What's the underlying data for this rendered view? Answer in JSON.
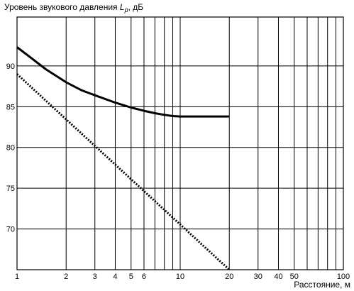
{
  "chart_data": {
    "type": "line",
    "ylabel_prefix": "Уровень звукового давления ",
    "ylabel_symbol": "L",
    "ylabel_subscript": "p",
    "ylabel_suffix": ", дБ",
    "xlabel": "Расстояние, м",
    "x_scale": "log",
    "xlim": [
      1,
      100
    ],
    "ylim": [
      65,
      96
    ],
    "x_ticks": [
      1,
      2,
      3,
      4,
      5,
      6,
      10,
      20,
      30,
      40,
      50,
      100
    ],
    "x_tick_labels": [
      "1",
      "2",
      "3",
      "4",
      "5",
      "6",
      "10",
      "20",
      "30",
      "40",
      "50",
      "100"
    ],
    "x_gridlines": [
      1,
      2,
      3,
      4,
      5,
      6,
      7,
      8,
      9,
      10,
      20,
      30,
      40,
      50,
      60,
      70,
      80,
      90,
      100
    ],
    "y_ticks": [
      70,
      75,
      80,
      85,
      90
    ],
    "y_tick_labels": [
      "70",
      "75",
      "80",
      "85",
      "90"
    ],
    "grid": true,
    "series": [
      {
        "style": "solid",
        "x": [
          1,
          1.2,
          1.5,
          2,
          2.5,
          3,
          4,
          5,
          6,
          7,
          8,
          9,
          10,
          12,
          15,
          20
        ],
        "y": [
          92.3,
          91.1,
          89.6,
          88.0,
          87.0,
          86.4,
          85.5,
          84.9,
          84.5,
          84.2,
          84.0,
          83.85,
          83.8,
          83.8,
          83.8,
          83.8
        ]
      },
      {
        "style": "dotted",
        "x": [
          1,
          20
        ],
        "y": [
          89.0,
          65.0
        ]
      }
    ]
  }
}
